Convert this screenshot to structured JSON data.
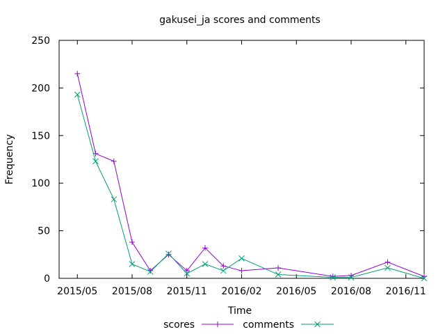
{
  "chart_data": {
    "type": "line",
    "title": "gakusei_ja scores and comments",
    "xlabel": "Time",
    "ylabel": "Frequency",
    "x_start": "2015-04",
    "x_end": "2016-12",
    "ylim": [
      0,
      250
    ],
    "yticks": [
      0,
      50,
      100,
      150,
      200,
      250
    ],
    "xticks": [
      {
        "date": "2015-05",
        "label": "2015/05"
      },
      {
        "date": "2015-08",
        "label": "2015/08"
      },
      {
        "date": "2015-11",
        "label": "2015/11"
      },
      {
        "date": "2016-02",
        "label": "2016/02"
      },
      {
        "date": "2016-05",
        "label": "2016/05"
      },
      {
        "date": "2016-08",
        "label": "2016/08"
      },
      {
        "date": "2016-11",
        "label": "2016/11"
      }
    ],
    "grid": false,
    "legend_position": "bottom",
    "series": [
      {
        "name": "scores",
        "color": "#9400d3",
        "marker": "plus",
        "x": [
          "2015-05",
          "2015-06",
          "2015-07",
          "2015-08",
          "2015-09",
          "2015-10",
          "2015-11",
          "2015-12",
          "2016-01",
          "2016-02",
          "2016-04",
          "2016-07",
          "2016-08",
          "2016-10",
          "2016-12"
        ],
        "values": [
          215,
          131,
          123,
          38,
          8,
          25,
          8,
          32,
          13,
          8,
          11,
          2,
          3,
          17,
          2
        ]
      },
      {
        "name": "comments",
        "color": "#009e73",
        "marker": "cross",
        "x": [
          "2015-05",
          "2015-06",
          "2015-07",
          "2015-08",
          "2015-09",
          "2015-10",
          "2015-11",
          "2015-12",
          "2016-01",
          "2016-02",
          "2016-04",
          "2016-07",
          "2016-08",
          "2016-10",
          "2016-12"
        ],
        "values": [
          193,
          123,
          83,
          15,
          7,
          26,
          5,
          15,
          8,
          21,
          4,
          1,
          1,
          11,
          0
        ]
      }
    ]
  }
}
